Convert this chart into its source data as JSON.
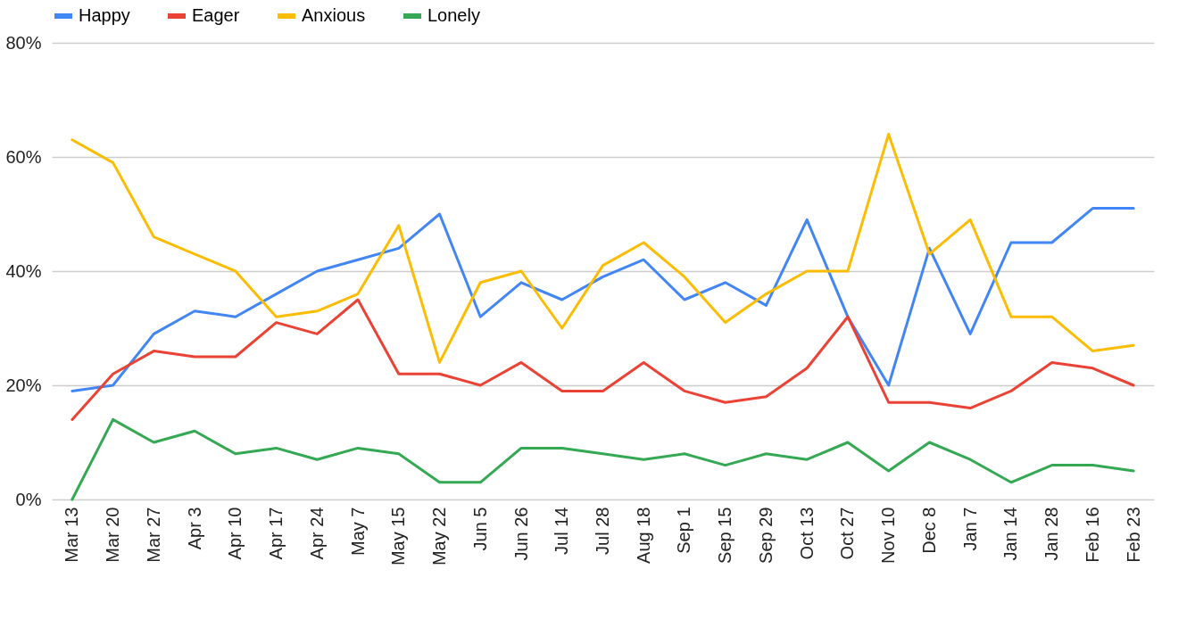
{
  "chart_data": {
    "type": "line",
    "categories": [
      "Mar 13",
      "Mar 20",
      "Mar 27",
      "Apr 3",
      "Apr 10",
      "Apr 17",
      "Apr 24",
      "May 7",
      "May 15",
      "May 22",
      "Jun 5",
      "Jun 26",
      "Jul 14",
      "Jul 28",
      "Aug 18",
      "Sep 1",
      "Sep 15",
      "Sep 29",
      "Oct 13",
      "Oct 27",
      "Nov 10",
      "Dec 8",
      "Jan 7",
      "Jan 14",
      "Jan 28",
      "Feb 16",
      "Feb 23"
    ],
    "series": [
      {
        "name": "Happy",
        "color": "#4285f4",
        "values": [
          19,
          20,
          29,
          33,
          32,
          36,
          40,
          42,
          44,
          50,
          32,
          38,
          35,
          39,
          42,
          35,
          38,
          34,
          49,
          32,
          20,
          44,
          29,
          45,
          45,
          51,
          51
        ]
      },
      {
        "name": "Eager",
        "color": "#ea4335",
        "values": [
          14,
          22,
          26,
          25,
          25,
          31,
          29,
          35,
          22,
          22,
          20,
          24,
          19,
          19,
          24,
          19,
          17,
          18,
          23,
          32,
          17,
          17,
          16,
          19,
          24,
          23,
          20
        ]
      },
      {
        "name": "Anxious",
        "color": "#fbbc04",
        "values": [
          63,
          59,
          46,
          43,
          40,
          32,
          33,
          36,
          48,
          24,
          38,
          40,
          30,
          41,
          45,
          39,
          31,
          36,
          40,
          40,
          64,
          43,
          49,
          32,
          32,
          26,
          27
        ]
      },
      {
        "name": "Lonely",
        "color": "#34a853",
        "values": [
          0,
          14,
          10,
          12,
          8,
          9,
          7,
          9,
          8,
          3,
          3,
          9,
          9,
          8,
          7,
          8,
          6,
          8,
          7,
          10,
          5,
          10,
          7,
          3,
          6,
          6,
          5
        ]
      }
    ],
    "ylim": [
      0,
      80
    ],
    "yticks": [
      {
        "value": 0,
        "label": "0%"
      },
      {
        "value": 20,
        "label": "20%"
      },
      {
        "value": 40,
        "label": "40%"
      },
      {
        "value": 60,
        "label": "60%"
      },
      {
        "value": 80,
        "label": "80%"
      }
    ],
    "grid": "y",
    "legend": "top"
  }
}
